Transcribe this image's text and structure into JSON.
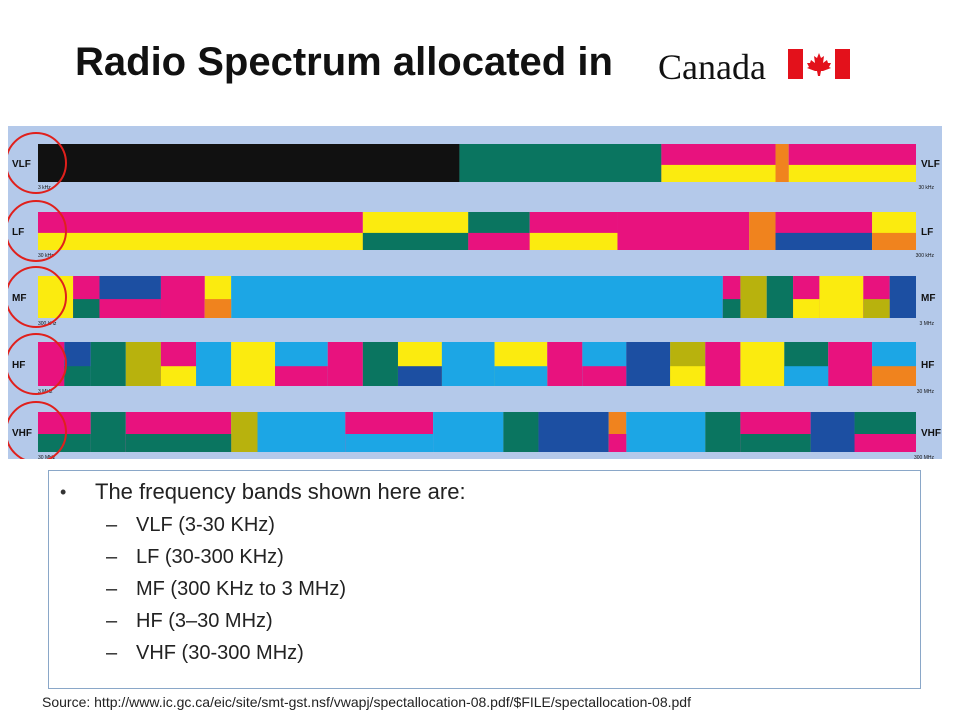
{
  "title": "Radio Spectrum allocated  in",
  "logo_text": "Canada",
  "colors": {
    "magenta": "#e8127e",
    "yellow": "#fbeb0f",
    "teal": "#0a7560",
    "sky": "#1ca6e5",
    "navy": "#1c4fa2",
    "orange": "#f0831e",
    "olive": "#b8b20d",
    "black": "#111111",
    "chart_bg": "#b4c9ea",
    "circle": "#e0201c",
    "flag_red": "#e3111b"
  },
  "chart": {
    "bands": [
      {
        "name": "VLF",
        "start": "3 kHz",
        "end": "30 kHz"
      },
      {
        "name": "LF",
        "start": "30 kHz",
        "end": "300 kHz"
      },
      {
        "name": "MF",
        "start": "300 kHz",
        "end": "3 MHz"
      },
      {
        "name": "HF",
        "start": "3 MHz",
        "end": "30 MHz"
      },
      {
        "name": "VHF",
        "start": "30 MHz",
        "end": "300 MHz"
      }
    ]
  },
  "notes": {
    "intro": "The frequency bands shown here are:",
    "items": [
      "VLF (3-30 KHz)",
      "LF (30-300 KHz)",
      "MF (300 KHz to 3 MHz)",
      "HF (3–30 MHz)",
      "VHF (30-300 MHz)"
    ]
  },
  "source": "Source:  http://www.ic.gc.ca/eic/site/smt-gst.nsf/vwapj/spectallocation-08.pdf/$FILE/spectallocation-08.pdf"
}
